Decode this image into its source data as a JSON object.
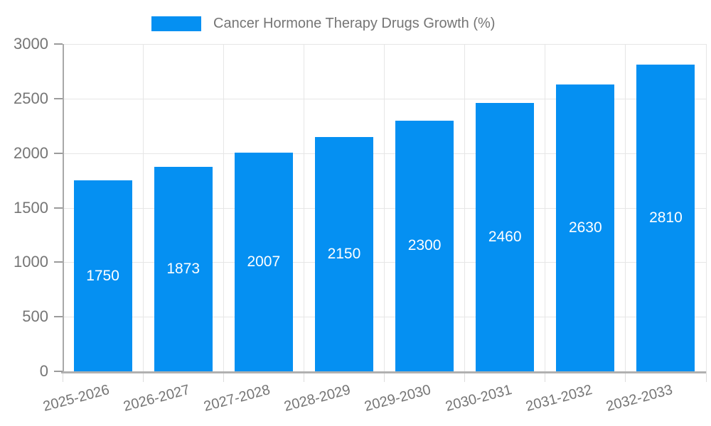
{
  "chart_data": {
    "type": "bar",
    "title": "Cancer Hormone Therapy Drugs Growth (%)",
    "categories": [
      "2025-2026",
      "2026-2027",
      "2027-2028",
      "2028-2029",
      "2029-2030",
      "2030-2031",
      "2031-2032",
      "2032-2033"
    ],
    "values": [
      1750,
      1873,
      2007,
      2150,
      2300,
      2460,
      2630,
      2810
    ],
    "xlabel": "",
    "ylabel": "",
    "ylim": [
      0,
      3000
    ],
    "yticks": [
      0,
      500,
      1000,
      1500,
      2000,
      2500,
      3000
    ],
    "grid": true,
    "legend_position": "top",
    "value_labels": "centered-inside-bars",
    "x_label_rotation_deg": -15
  },
  "colors": {
    "bar": "#0590f2",
    "bar_label": "#ffffff",
    "grid": "#e6e6e6",
    "axis": "#aaaaaa",
    "tick_text": "#757575",
    "legend_text": "#757575"
  }
}
